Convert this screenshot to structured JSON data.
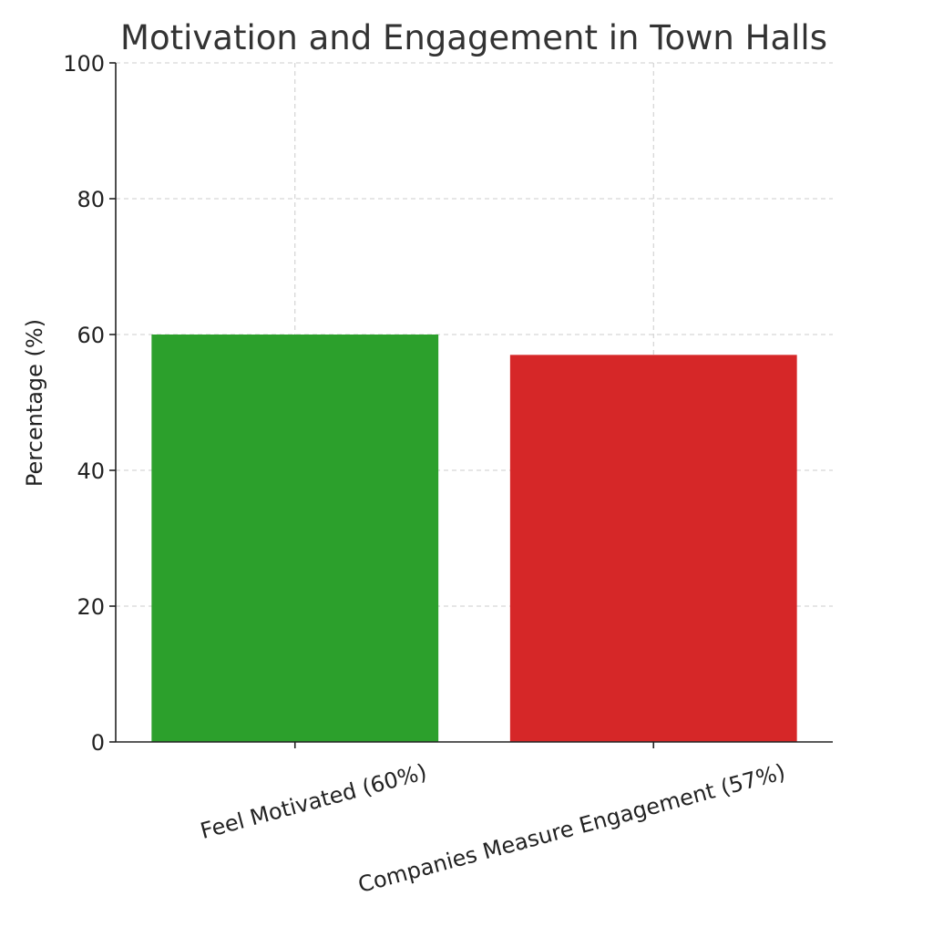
{
  "chart_data": {
    "type": "bar",
    "title": "Motivation and Engagement in Town Halls",
    "xlabel": "",
    "ylabel": "Percentage (%)",
    "categories": [
      "Feel Motivated (60%)",
      "Companies Measure Engagement (57%)"
    ],
    "values": [
      60,
      57
    ],
    "colors": [
      "#2ca02c",
      "#d62728"
    ],
    "ylim": [
      0,
      100
    ],
    "yticks": [
      "0",
      "20",
      "40",
      "60",
      "80",
      "100"
    ],
    "grid": true,
    "category_label_rotation": "rotated ~15 degrees counter-clockwise"
  }
}
